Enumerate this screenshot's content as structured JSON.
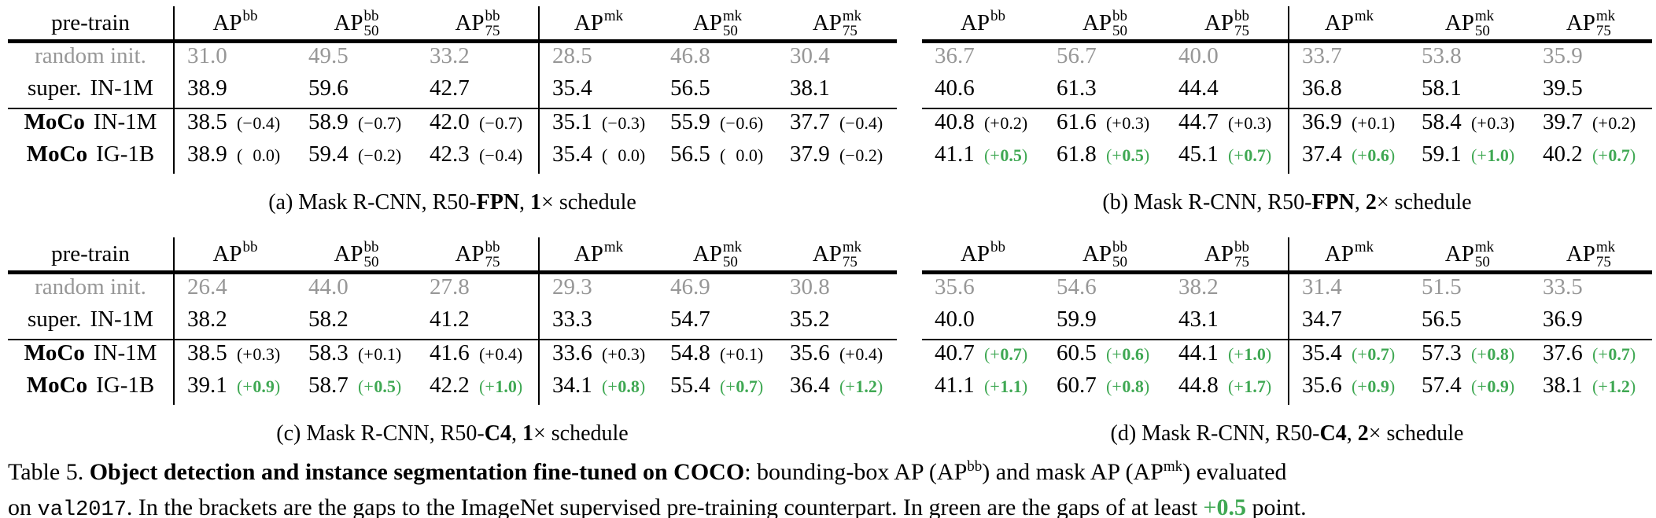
{
  "colors": {
    "green": "#3FA853",
    "gray": "#979797"
  },
  "header": {
    "row_label": "pre-train",
    "base": "AP",
    "cols": [
      {
        "sup": "bb",
        "sub": ""
      },
      {
        "sup": "bb",
        "sub": "50"
      },
      {
        "sup": "bb",
        "sub": "75"
      },
      {
        "sup": "mk",
        "sub": ""
      },
      {
        "sup": "mk",
        "sub": "50"
      },
      {
        "sup": "mk",
        "sub": "75"
      }
    ]
  },
  "row_labels": [
    {
      "pre": "",
      "main": "random init.",
      "style": "gray"
    },
    {
      "pre": "super.",
      "main": "IN-1M",
      "style": "plain"
    },
    {
      "pre": "MoCo",
      "main": "IN-1M",
      "style": "moco"
    },
    {
      "pre": "MoCo",
      "main": "IG-1B",
      "style": "moco"
    }
  ],
  "tables": [
    {
      "id": "a",
      "has_labels": true,
      "caption": [
        {
          "t": "(a) Mask R-CNN, R50-"
        },
        {
          "t": "FPN",
          "b": true
        },
        {
          "t": ", "
        },
        {
          "t": "1",
          "b": true
        },
        {
          "t": "× schedule"
        }
      ],
      "rows": [
        {
          "style": "gray",
          "cells": [
            {
              "v": "31.0"
            },
            {
              "v": "49.5"
            },
            {
              "v": "33.2"
            },
            {
              "v": "28.5"
            },
            {
              "v": "46.8"
            },
            {
              "v": "30.4"
            }
          ]
        },
        {
          "style": "plain",
          "cells": [
            {
              "v": "38.9"
            },
            {
              "v": "59.6"
            },
            {
              "v": "42.7"
            },
            {
              "v": "35.4"
            },
            {
              "v": "56.5"
            },
            {
              "v": "38.1"
            }
          ]
        },
        {
          "style": "moco",
          "cells": [
            {
              "v": "38.5",
              "g": "−0.4",
              "green": false
            },
            {
              "v": "58.9",
              "g": "−0.7",
              "green": false
            },
            {
              "v": "42.0",
              "g": "−0.7",
              "green": false
            },
            {
              "v": "35.1",
              "g": "−0.3",
              "green": false
            },
            {
              "v": "55.9",
              "g": "−0.6",
              "green": false
            },
            {
              "v": "37.7",
              "g": "−0.4",
              "green": false
            }
          ]
        },
        {
          "style": "moco",
          "cells": [
            {
              "v": "38.9",
              "g": " 0.0",
              "green": false
            },
            {
              "v": "59.4",
              "g": "−0.2",
              "green": false
            },
            {
              "v": "42.3",
              "g": "−0.4",
              "green": false
            },
            {
              "v": "35.4",
              "g": " 0.0",
              "green": false
            },
            {
              "v": "56.5",
              "g": " 0.0",
              "green": false
            },
            {
              "v": "37.9",
              "g": "−0.2",
              "green": false
            }
          ]
        }
      ]
    },
    {
      "id": "b",
      "has_labels": false,
      "caption": [
        {
          "t": "(b) Mask R-CNN, R50-"
        },
        {
          "t": "FPN",
          "b": true
        },
        {
          "t": ", "
        },
        {
          "t": "2",
          "b": true
        },
        {
          "t": "× schedule"
        }
      ],
      "rows": [
        {
          "style": "gray",
          "cells": [
            {
              "v": "36.7"
            },
            {
              "v": "56.7"
            },
            {
              "v": "40.0"
            },
            {
              "v": "33.7"
            },
            {
              "v": "53.8"
            },
            {
              "v": "35.9"
            }
          ]
        },
        {
          "style": "plain",
          "cells": [
            {
              "v": "40.6"
            },
            {
              "v": "61.3"
            },
            {
              "v": "44.4"
            },
            {
              "v": "36.8"
            },
            {
              "v": "58.1"
            },
            {
              "v": "39.5"
            }
          ]
        },
        {
          "style": "moco",
          "cells": [
            {
              "v": "40.8",
              "g": "+0.2",
              "green": false
            },
            {
              "v": "61.6",
              "g": "+0.3",
              "green": false
            },
            {
              "v": "44.7",
              "g": "+0.3",
              "green": false
            },
            {
              "v": "36.9",
              "g": "+0.1",
              "green": false
            },
            {
              "v": "58.4",
              "g": "+0.3",
              "green": false
            },
            {
              "v": "39.7",
              "g": "+0.2",
              "green": false
            }
          ]
        },
        {
          "style": "moco",
          "cells": [
            {
              "v": "41.1",
              "g": "+0.5",
              "green": true
            },
            {
              "v": "61.8",
              "g": "+0.5",
              "green": true
            },
            {
              "v": "45.1",
              "g": "+0.7",
              "green": true
            },
            {
              "v": "37.4",
              "g": "+0.6",
              "green": true
            },
            {
              "v": "59.1",
              "g": "+1.0",
              "green": true
            },
            {
              "v": "40.2",
              "g": "+0.7",
              "green": true
            }
          ]
        }
      ]
    },
    {
      "id": "c",
      "has_labels": true,
      "caption": [
        {
          "t": "(c) Mask R-CNN, R50-"
        },
        {
          "t": "C4",
          "b": true
        },
        {
          "t": ", "
        },
        {
          "t": "1",
          "b": true
        },
        {
          "t": "× schedule"
        }
      ],
      "rows": [
        {
          "style": "gray",
          "cells": [
            {
              "v": "26.4"
            },
            {
              "v": "44.0"
            },
            {
              "v": "27.8"
            },
            {
              "v": "29.3"
            },
            {
              "v": "46.9"
            },
            {
              "v": "30.8"
            }
          ]
        },
        {
          "style": "plain",
          "cells": [
            {
              "v": "38.2"
            },
            {
              "v": "58.2"
            },
            {
              "v": "41.2"
            },
            {
              "v": "33.3"
            },
            {
              "v": "54.7"
            },
            {
              "v": "35.2"
            }
          ]
        },
        {
          "style": "moco",
          "cells": [
            {
              "v": "38.5",
              "g": "+0.3",
              "green": false
            },
            {
              "v": "58.3",
              "g": "+0.1",
              "green": false
            },
            {
              "v": "41.6",
              "g": "+0.4",
              "green": false
            },
            {
              "v": "33.6",
              "g": "+0.3",
              "green": false
            },
            {
              "v": "54.8",
              "g": "+0.1",
              "green": false
            },
            {
              "v": "35.6",
              "g": "+0.4",
              "green": false
            }
          ]
        },
        {
          "style": "moco",
          "cells": [
            {
              "v": "39.1",
              "g": "+0.9",
              "green": true
            },
            {
              "v": "58.7",
              "g": "+0.5",
              "green": true
            },
            {
              "v": "42.2",
              "g": "+1.0",
              "green": true
            },
            {
              "v": "34.1",
              "g": "+0.8",
              "green": true
            },
            {
              "v": "55.4",
              "g": "+0.7",
              "green": true
            },
            {
              "v": "36.4",
              "g": "+1.2",
              "green": true
            }
          ]
        }
      ]
    },
    {
      "id": "d",
      "has_labels": false,
      "caption": [
        {
          "t": "(d) Mask R-CNN, R50-"
        },
        {
          "t": "C4",
          "b": true
        },
        {
          "t": ", "
        },
        {
          "t": "2",
          "b": true
        },
        {
          "t": "× schedule"
        }
      ],
      "rows": [
        {
          "style": "gray",
          "cells": [
            {
              "v": "35.6"
            },
            {
              "v": "54.6"
            },
            {
              "v": "38.2"
            },
            {
              "v": "31.4"
            },
            {
              "v": "51.5"
            },
            {
              "v": "33.5"
            }
          ]
        },
        {
          "style": "plain",
          "cells": [
            {
              "v": "40.0"
            },
            {
              "v": "59.9"
            },
            {
              "v": "43.1"
            },
            {
              "v": "34.7"
            },
            {
              "v": "56.5"
            },
            {
              "v": "36.9"
            }
          ]
        },
        {
          "style": "moco",
          "cells": [
            {
              "v": "40.7",
              "g": "+0.7",
              "green": true
            },
            {
              "v": "60.5",
              "g": "+0.6",
              "green": true
            },
            {
              "v": "44.1",
              "g": "+1.0",
              "green": true
            },
            {
              "v": "35.4",
              "g": "+0.7",
              "green": true
            },
            {
              "v": "57.3",
              "g": "+0.8",
              "green": true
            },
            {
              "v": "37.6",
              "g": "+0.7",
              "green": true
            }
          ]
        },
        {
          "style": "moco",
          "cells": [
            {
              "v": "41.1",
              "g": "+1.1",
              "green": true
            },
            {
              "v": "60.7",
              "g": "+0.8",
              "green": true
            },
            {
              "v": "44.8",
              "g": "+1.7",
              "green": true
            },
            {
              "v": "35.6",
              "g": "+0.9",
              "green": true
            },
            {
              "v": "57.4",
              "g": "+0.9",
              "green": true
            },
            {
              "v": "38.1",
              "g": "+1.2",
              "green": true
            }
          ]
        }
      ]
    }
  ],
  "main_caption": {
    "line1": [
      {
        "t": "Table 5. "
      },
      {
        "t": "Object detection and instance segmentation fine-tuned on COCO",
        "b": true
      },
      {
        "t": ": bounding-box AP (AP"
      },
      {
        "t": "bb",
        "sup": true
      },
      {
        "t": ") and mask AP (AP"
      },
      {
        "t": "mk",
        "sup": true
      },
      {
        "t": ") evaluated"
      }
    ],
    "line2": [
      {
        "t": "on "
      },
      {
        "t": "val2017",
        "mono": true
      },
      {
        "t": ". In the brackets are the gaps to the ImageNet supervised pre-training counterpart. In green are the gaps of at least "
      },
      {
        "t": "+",
        "green": true
      },
      {
        "t": "0.5",
        "green": true,
        "b": true
      },
      {
        "t": " point."
      }
    ]
  }
}
